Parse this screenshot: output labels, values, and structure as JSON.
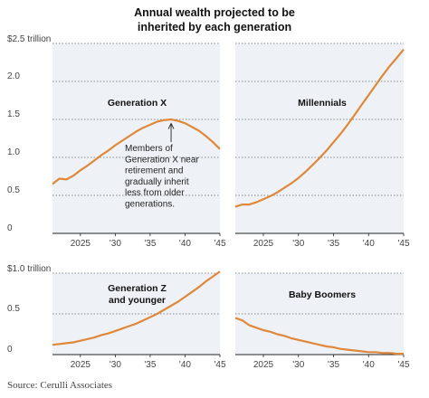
{
  "title_line1": "Annual wealth projected to be",
  "title_line2": "inherited by each generation",
  "source": "Source: Cerulli Associates",
  "colors": {
    "line": "#e0883a",
    "panel_bg": "#eef2f7",
    "grid": "#222222",
    "text": "#444444"
  },
  "chart_data": [
    {
      "type": "line",
      "title": "Annual wealth projected to be inherited by each generation",
      "ylim": [
        0,
        2.5
      ],
      "yticks": [
        "$2.5 trillion",
        "2.0",
        "1.5",
        "1.0",
        "0.5",
        "0"
      ],
      "xlim": [
        2021,
        2045
      ],
      "xticks": [
        "2025",
        "'30",
        "'35",
        "'40",
        "'45"
      ],
      "annotation": "Members of Generation X near retirement and gradually inherit less from older generations.",
      "panels": [
        {
          "name": "Generation X",
          "x": [
            2021,
            2022,
            2023,
            2024,
            2025,
            2026,
            2027,
            2028,
            2029,
            2030,
            2031,
            2032,
            2033,
            2034,
            2035,
            2036,
            2037,
            2038,
            2039,
            2040,
            2041,
            2042,
            2043,
            2044,
            2045
          ],
          "y": [
            0.65,
            0.72,
            0.71,
            0.76,
            0.83,
            0.89,
            0.96,
            1.03,
            1.09,
            1.16,
            1.22,
            1.28,
            1.34,
            1.39,
            1.43,
            1.47,
            1.49,
            1.5,
            1.48,
            1.45,
            1.4,
            1.35,
            1.28,
            1.2,
            1.11
          ]
        },
        {
          "name": "Millennials",
          "x": [
            2021,
            2022,
            2023,
            2024,
            2025,
            2026,
            2027,
            2028,
            2029,
            2030,
            2031,
            2032,
            2033,
            2034,
            2035,
            2036,
            2037,
            2038,
            2039,
            2040,
            2041,
            2042,
            2043,
            2044,
            2045
          ],
          "y": [
            0.35,
            0.38,
            0.38,
            0.41,
            0.45,
            0.49,
            0.54,
            0.6,
            0.66,
            0.73,
            0.81,
            0.9,
            0.99,
            1.09,
            1.2,
            1.31,
            1.43,
            1.56,
            1.69,
            1.82,
            1.95,
            2.08,
            2.2,
            2.31,
            2.42
          ]
        }
      ]
    },
    {
      "type": "line",
      "ylim": [
        0,
        1.0
      ],
      "yticks": [
        "$1.0 trillion",
        "0.5",
        "0"
      ],
      "xlim": [
        2021,
        2045
      ],
      "xticks": [
        "2025",
        "'30",
        "'35",
        "'40",
        "'45"
      ],
      "panels": [
        {
          "name": "Generation Z and younger",
          "name_lines": [
            "Generation Z",
            "and younger"
          ],
          "x": [
            2021,
            2022,
            2023,
            2024,
            2025,
            2026,
            2027,
            2028,
            2029,
            2030,
            2031,
            2032,
            2033,
            2034,
            2035,
            2036,
            2037,
            2038,
            2039,
            2040,
            2041,
            2042,
            2043,
            2044,
            2045
          ],
          "y": [
            0.12,
            0.13,
            0.14,
            0.15,
            0.17,
            0.19,
            0.21,
            0.24,
            0.26,
            0.29,
            0.32,
            0.35,
            0.38,
            0.42,
            0.46,
            0.5,
            0.55,
            0.6,
            0.65,
            0.71,
            0.77,
            0.83,
            0.9,
            0.96,
            1.02
          ]
        },
        {
          "name": "Baby Boomers",
          "x": [
            2021,
            2022,
            2023,
            2024,
            2025,
            2026,
            2027,
            2028,
            2029,
            2030,
            2031,
            2032,
            2033,
            2034,
            2035,
            2036,
            2037,
            2038,
            2039,
            2040,
            2041,
            2042,
            2043,
            2044,
            2045
          ],
          "y": [
            0.45,
            0.42,
            0.36,
            0.33,
            0.3,
            0.28,
            0.25,
            0.23,
            0.2,
            0.18,
            0.16,
            0.14,
            0.12,
            0.1,
            0.09,
            0.07,
            0.06,
            0.05,
            0.04,
            0.03,
            0.03,
            0.02,
            0.02,
            0.01,
            0.01
          ]
        }
      ]
    }
  ]
}
